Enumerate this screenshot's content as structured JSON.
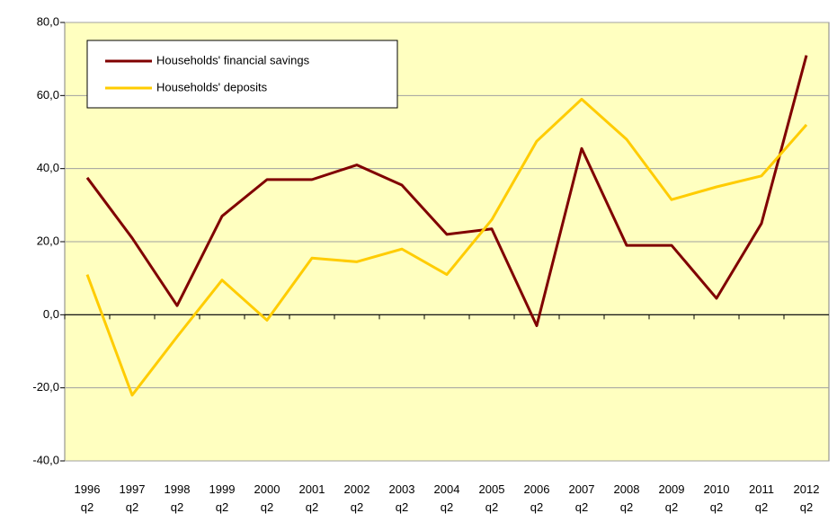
{
  "chart_data": {
    "type": "line",
    "categories": [
      "1996 q2",
      "1997 q2",
      "1998 q2",
      "1999 q2",
      "2000 q2",
      "2001 q2",
      "2002 q2",
      "2003 q2",
      "2004 q2",
      "2005 q2",
      "2006 q2",
      "2007 q2",
      "2008 q2",
      "2009 q2",
      "2010 q2",
      "2011 q2",
      "2012 q2"
    ],
    "series": [
      {
        "name": "Households' financial savings",
        "color": "#800000",
        "values": [
          37.5,
          21,
          2.5,
          27,
          37,
          37,
          41,
          35.5,
          22,
          23.5,
          -3,
          45.5,
          19,
          19,
          4.5,
          25,
          71
        ]
      },
      {
        "name": "Households' deposits",
        "color": "#ffcc00",
        "values": [
          11,
          -22,
          -6,
          9.5,
          -1.5,
          15.5,
          14.5,
          18,
          11,
          26,
          47.5,
          59,
          48,
          31.5,
          35,
          38,
          52
        ]
      }
    ],
    "ylim": [
      -40,
      80
    ],
    "yticks": [
      {
        "value": -40,
        "label": "-40,0"
      },
      {
        "value": -20,
        "label": "-20,0"
      },
      {
        "value": 0,
        "label": "0,0"
      },
      {
        "value": 20,
        "label": "20,0"
      },
      {
        "value": 40,
        "label": "40,0"
      },
      {
        "value": 60,
        "label": "60,0"
      },
      {
        "value": 80,
        "label": "80,0"
      }
    ],
    "grid": true,
    "legend": "upper left",
    "background": "#ffffc0"
  }
}
